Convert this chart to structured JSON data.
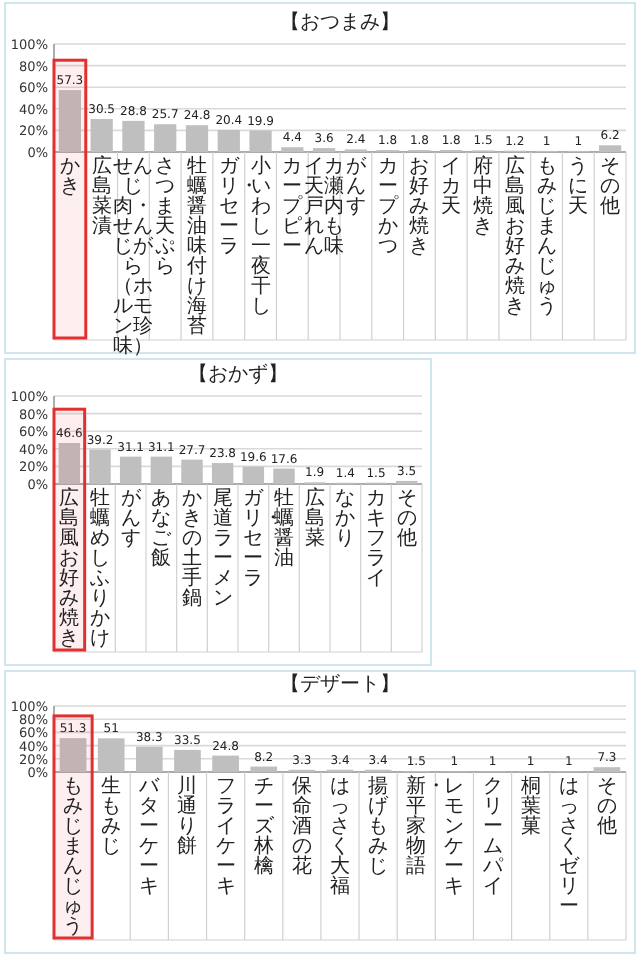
{
  "chart_data": [
    {
      "type": "bar",
      "title": "【おつまみ】",
      "categories": [
        "かき",
        "広島菜漬",
        "せんじ肉・せんじがら（ホルモン珍味）",
        "さつま天ぷら",
        "牡蠣醤油味付け海苔",
        "ガリ・セーラ",
        "小いわし一夜干し",
        "カープピー",
        "イカ天瀬戸内れもん味",
        "がんす",
        "カープかつ",
        "お好み焼き",
        "イカ天",
        "府中焼き",
        "広島風お好み焼き",
        "もみじまんじゅう",
        "うに天",
        "その他"
      ],
      "values": [
        57.3,
        30.5,
        28.8,
        25.7,
        24.8,
        20.4,
        19.9,
        4.4,
        3.6,
        2.4,
        1.8,
        1.8,
        1.8,
        1.5,
        1.2,
        1.0,
        1.0,
        6.2
      ],
      "color": "#bfbfbf",
      "ylim": [
        0,
        100
      ],
      "yticks": [
        {
          "value": 0,
          "label": "0%"
        },
        {
          "value": 20,
          "label": "20%"
        },
        {
          "value": 40,
          "label": "40%"
        },
        {
          "value": 60,
          "label": "60%"
        },
        {
          "value": 80,
          "label": "80%"
        },
        {
          "value": 100,
          "label": "100%"
        }
      ],
      "grid": "y",
      "data_labels": true,
      "bands": [
        {
          "axis": "x",
          "from": "かき",
          "to": "かき",
          "label": null,
          "color": "#e03030"
        }
      ]
    },
    {
      "type": "bar",
      "title": "【おかず】",
      "categories": [
        "広島風お好み焼き",
        "牡蠣めしふりかけ",
        "がんす",
        "あなご飯",
        "かきの土手鍋",
        "尾道ラーメン",
        "ガリ・セーラ",
        "牡蠣醤油",
        "広島菜",
        "なかり",
        "カキフライ",
        "その他"
      ],
      "values": [
        46.6,
        39.2,
        31.1,
        31.1,
        27.7,
        23.8,
        19.6,
        17.6,
        1.9,
        1.4,
        1.5,
        3.5
      ],
      "color": "#bfbfbf",
      "ylim": [
        0,
        100
      ],
      "yticks": [
        {
          "value": 0,
          "label": "0%"
        },
        {
          "value": 20,
          "label": "20%"
        },
        {
          "value": 40,
          "label": "40%"
        },
        {
          "value": 60,
          "label": "60%"
        },
        {
          "value": 80,
          "label": "80%"
        },
        {
          "value": 100,
          "label": "100%"
        }
      ],
      "grid": "y",
      "data_labels": true,
      "bands": [
        {
          "axis": "x",
          "from": "広島風お好み焼き",
          "to": "広島風お好み焼き",
          "label": null,
          "color": "#e03030"
        }
      ]
    },
    {
      "type": "bar",
      "title": "【デザート】",
      "categories": [
        "もみじまんじゅう",
        "生もみじ",
        "バターケーキ",
        "川通り餅",
        "フライケーキ",
        "チーズ林檎",
        "保命酒の花",
        "はっさく大福",
        "揚げもみじ",
        "新・平家物語",
        "レモンケーキ",
        "クリームパイ",
        "桐葉菓",
        "はっさくゼリー",
        "その他"
      ],
      "values": [
        51.3,
        51.0,
        38.3,
        33.5,
        24.8,
        8.2,
        3.3,
        3.4,
        3.4,
        1.5,
        1.0,
        1.0,
        1.0,
        1.0,
        7.3
      ],
      "color": "#bfbfbf",
      "ylim": [
        0,
        100
      ],
      "yticks": [
        {
          "value": 0,
          "label": "0%"
        },
        {
          "value": 20,
          "label": "20%"
        },
        {
          "value": 40,
          "label": "40%"
        },
        {
          "value": 60,
          "label": "60%"
        },
        {
          "value": 80,
          "label": "80%"
        },
        {
          "value": 100,
          "label": "100%"
        }
      ],
      "grid": "y",
      "data_labels": true,
      "bands": [
        {
          "axis": "x",
          "from": "もみじまんじゅう",
          "to": "もみじまんじゅう",
          "label": null,
          "color": "#e03030"
        }
      ]
    }
  ]
}
